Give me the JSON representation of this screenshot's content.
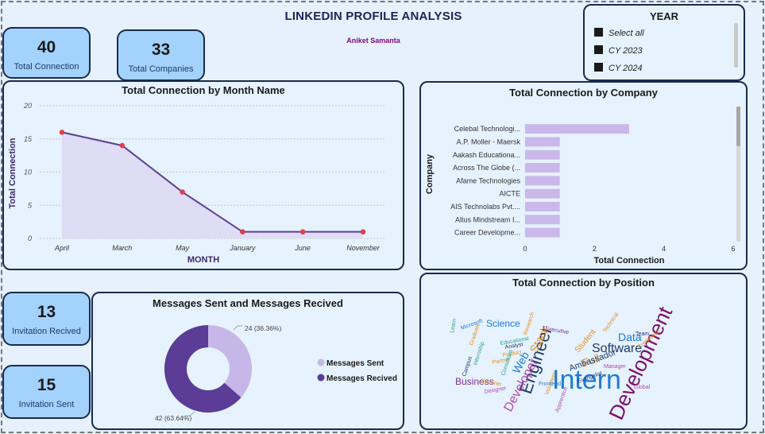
{
  "header": {
    "title": "LINKEDIN PROFILE ANALYSIS",
    "author": "Aniket Samanta"
  },
  "kpis": {
    "total_connection": {
      "value": "40",
      "label": "Total Connection"
    },
    "total_companies": {
      "value": "33",
      "label": "Total Companies"
    },
    "invitation_received": {
      "value": "13",
      "label": "Invitation Recived"
    },
    "invitation_sent": {
      "value": "15",
      "label": "Invitation Sent"
    }
  },
  "year_slicer": {
    "title": "YEAR",
    "options": [
      "Select all",
      "CY 2023",
      "CY 2024"
    ]
  },
  "chart_data": [
    {
      "type": "area",
      "title": "Total Connection by Month Name",
      "xlabel": "MONTH",
      "ylabel": "Total Connection",
      "categories": [
        "April",
        "March",
        "May",
        "January",
        "June",
        "November"
      ],
      "values": [
        16,
        14,
        7,
        1,
        1,
        1
      ],
      "ylim": [
        0,
        20
      ],
      "yticks": [
        0,
        5,
        10,
        15,
        20
      ],
      "grid": true,
      "colors": {
        "line": "#5b3f96",
        "fill": "#dcd9f3",
        "marker": "#d9434b"
      }
    },
    {
      "type": "bar",
      "orientation": "horizontal",
      "title": "Total Connection by Company",
      "xlabel": "Total Connection",
      "ylabel": "Company",
      "categories": [
        "Celebal Technologi...",
        "A.P. Moller - Maersk",
        "Aakash Educationa...",
        "Across The Globe (...",
        "Afame Technologies",
        "AICTE",
        "AIS Technolabs Pvt....",
        "Altus Mindstream I...",
        "Career Developme..."
      ],
      "values": [
        3,
        1,
        1,
        1,
        1,
        1,
        1,
        1,
        1
      ],
      "xlim": [
        0,
        6
      ],
      "xticks": [
        0,
        2,
        4,
        6
      ],
      "colors": {
        "bar": "#cbb8eb"
      }
    },
    {
      "type": "pie",
      "donut": true,
      "title": "Messages Sent and Messages Recived",
      "labels": [
        "Messages Sent",
        "Messages Recived"
      ],
      "values": [
        24,
        42
      ],
      "data_labels": [
        "24 (36.36%)",
        "42 (63.64%)"
      ],
      "colors": [
        "#c7b7e9",
        "#5b3c96"
      ],
      "legend": "right"
    }
  ],
  "word_cloud": {
    "title": "Total Connection by Position",
    "words": [
      {
        "text": "Intern",
        "size": 34,
        "color": "#1f7ad4"
      },
      {
        "text": "Development",
        "size": 26,
        "color": "#7a0f6b"
      },
      {
        "text": "Engineer",
        "size": 22,
        "color": "#1f3a6b"
      },
      {
        "text": "Developer",
        "size": 16,
        "color": "#b44aa8"
      },
      {
        "text": "Software",
        "size": 16,
        "color": "#1f3a6b"
      },
      {
        "text": "Data",
        "size": 14,
        "color": "#1f7ad4"
      },
      {
        "text": "Full",
        "size": 14,
        "color": "#e48f1b"
      },
      {
        "text": "Stack",
        "size": 14,
        "color": "#e48f1b"
      },
      {
        "text": "Web",
        "size": 14,
        "color": "#1f7ad4"
      },
      {
        "text": "Science",
        "size": 12,
        "color": "#1f7ad4"
      },
      {
        "text": "Business",
        "size": 12,
        "color": "#7a2f8a"
      },
      {
        "text": "Ambassador",
        "size": 11,
        "color": "#1f3a6b"
      },
      {
        "text": "Student",
        "size": 10,
        "color": "#e48f1b"
      },
      {
        "text": "Microsoft",
        "size": 7,
        "color": "#1f7ad4"
      },
      {
        "text": "Learn",
        "size": 7,
        "color": "#2a9d8f"
      },
      {
        "text": "Educational",
        "size": 7,
        "color": "#2a9d8f"
      },
      {
        "text": "Research",
        "size": 7,
        "color": "#e48f1b"
      },
      {
        "text": "Graduate",
        "size": 7,
        "color": "#e48f1b"
      },
      {
        "text": "Executive",
        "size": 7,
        "color": "#7a2f8a"
      },
      {
        "text": "Analyst",
        "size": 7,
        "color": "#1f3a6b"
      },
      {
        "text": "Product",
        "size": 7,
        "color": "#e48f1b"
      },
      {
        "text": "Partner",
        "size": 7,
        "color": "#e48f1b"
      },
      {
        "text": "Technical",
        "size": 7,
        "color": "#e48f1b"
      },
      {
        "text": "Team",
        "size": 7,
        "color": "#1f3a6b"
      },
      {
        "text": "Internship",
        "size": 7,
        "color": "#2a9d8f"
      },
      {
        "text": "Manager",
        "size": 7,
        "color": "#b44aa8"
      },
      {
        "text": "Contributor",
        "size": 7,
        "color": "#e48f1b"
      },
      {
        "text": "Campus",
        "size": 7,
        "color": "#1f3a6b"
      },
      {
        "text": "Summer",
        "size": 7,
        "color": "#e48f1b"
      },
      {
        "text": "Volunteer",
        "size": 7,
        "color": "#e48f1b"
      },
      {
        "text": "Global",
        "size": 7,
        "color": "#b44aa8"
      },
      {
        "text": "Apprentice",
        "size": 7,
        "color": "#b44aa8"
      },
      {
        "text": "Consultant",
        "size": 7,
        "color": "#2a9d8f"
      },
      {
        "text": "Evangelist",
        "size": 7,
        "color": "#1f3a6b"
      },
      {
        "text": "Designer",
        "size": 7,
        "color": "#b44aa8"
      },
      {
        "text": "Frontend",
        "size": 7,
        "color": "#1f7ad4"
      }
    ]
  }
}
